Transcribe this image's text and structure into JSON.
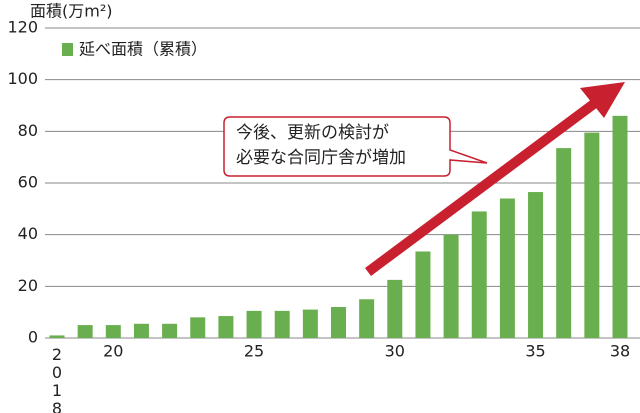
{
  "chart_data": {
    "type": "bar",
    "y_axis_label": "面積(万m²)",
    "legend": "延べ面積（累積）",
    "annotation": [
      "今後、更新の検討が",
      "必要な合同庁舎が増加"
    ],
    "categories": [
      "2018",
      null,
      "20",
      null,
      null,
      null,
      null,
      "25",
      null,
      null,
      null,
      null,
      "30",
      null,
      null,
      null,
      null,
      "35",
      null,
      null,
      "38"
    ],
    "values": [
      1,
      5,
      5,
      5.5,
      5.5,
      8,
      8.5,
      10.5,
      10.5,
      11,
      12,
      15,
      22.5,
      33.5,
      40,
      49,
      54,
      56.5,
      73.5,
      79.5,
      86
    ],
    "color": "#6aaf4f",
    "ylim": [
      0,
      120
    ],
    "yticks": [
      0,
      20,
      40,
      60,
      80,
      100,
      120
    ],
    "grid": true
  }
}
